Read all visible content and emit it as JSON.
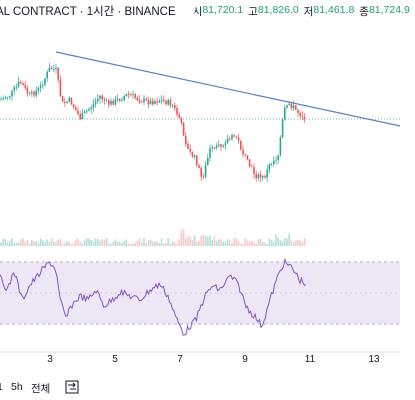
{
  "header": {
    "title": "AL CONTRACT · 1시간 · BINANCE",
    "ohlc": [
      {
        "label": "시",
        "value": "81,720.1"
      },
      {
        "label": "고",
        "value": "81,826.0"
      },
      {
        "label": "저",
        "value": "81,461.8"
      },
      {
        "label": "종",
        "value": "81,724.9"
      }
    ],
    "ohlc_color": "#1e9e7a"
  },
  "xaxis": {
    "labels": [
      "3",
      "5",
      "7",
      "9",
      "11",
      "13"
    ]
  },
  "bottom_bar": {
    "ranges": [
      "",
      "5h",
      "전체"
    ]
  },
  "bottom_bar_labels": {
    "r1": "1",
    "r2": "5h",
    "r3": "전체"
  },
  "colors": {
    "up": "#26a69a",
    "down": "#ef5350",
    "trendline": "#5b7fc4",
    "price_line": "#26a69a",
    "rsi_line": "#7e57c2",
    "rsi_band": "#ede7f6"
  },
  "icons": [
    "live-status-icon",
    "compare-icon"
  ]
}
